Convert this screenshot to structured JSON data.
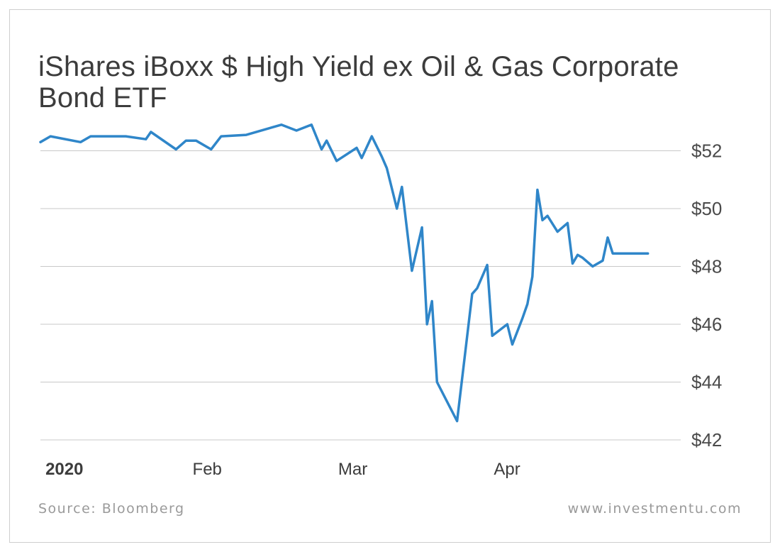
{
  "title": "iShares iBoxx $ High Yield ex Oil & Gas Corporate Bond ETF",
  "title_line1": "iShares iBoxx $ High Yield ex Oil & Gas Corporate",
  "title_line2": "Bond ETF",
  "source": "Source: Bloomberg",
  "site": "www.investmentu.com",
  "colors": {
    "line": "#2f86c9",
    "grid": "#c8c8c8",
    "text": "#3c3c3c"
  },
  "chart_data": {
    "type": "line",
    "title": "iShares iBoxx $ High Yield ex Oil & Gas Corporate Bond ETF",
    "xlabel": "",
    "ylabel": "",
    "ylim": [
      42,
      53
    ],
    "grid": "horizontal",
    "y_ticks": [
      {
        "value": 52,
        "label": "$52"
      },
      {
        "value": 50,
        "label": "$50"
      },
      {
        "value": 48,
        "label": "$48"
      },
      {
        "value": 46,
        "label": "$46"
      },
      {
        "value": 44,
        "label": "$44"
      },
      {
        "value": 42,
        "label": "$42"
      }
    ],
    "x_ticks": [
      {
        "date": "2020-01-01",
        "label": "2020",
        "bold": true
      },
      {
        "date": "2020-02-01",
        "label": "Feb",
        "bold": false
      },
      {
        "date": "2020-03-01",
        "label": "Mar",
        "bold": false
      },
      {
        "date": "2020-04-01",
        "label": "Apr",
        "bold": false
      }
    ],
    "series": [
      {
        "x": [
          "2019-12-31",
          "2020-01-02",
          "2020-01-08",
          "2020-01-10",
          "2020-01-15",
          "2020-01-17",
          "2020-01-21",
          "2020-01-22",
          "2020-01-27",
          "2020-01-29",
          "2020-01-31",
          "2020-02-03",
          "2020-02-05",
          "2020-02-10",
          "2020-02-17",
          "2020-02-20",
          "2020-02-23",
          "2020-02-25",
          "2020-02-26",
          "2020-02-28",
          "2020-03-03",
          "2020-03-04",
          "2020-03-06",
          "2020-03-08",
          "2020-03-09",
          "2020-03-11",
          "2020-03-12",
          "2020-03-14",
          "2020-03-16",
          "2020-03-17",
          "2020-03-18",
          "2020-03-19",
          "2020-03-23",
          "2020-03-26",
          "2020-03-27",
          "2020-03-29",
          "2020-03-30",
          "2020-04-02",
          "2020-04-03",
          "2020-04-05",
          "2020-04-06",
          "2020-04-07",
          "2020-04-08",
          "2020-04-09",
          "2020-04-10",
          "2020-04-12",
          "2020-04-14",
          "2020-04-15",
          "2020-04-16",
          "2020-04-17",
          "2020-04-19",
          "2020-04-21",
          "2020-04-22",
          "2020-04-23",
          "2020-04-24",
          "2020-04-26",
          "2020-04-27",
          "2020-04-29",
          "2020-04-30"
        ],
        "values": [
          52.3,
          52.5,
          52.3,
          52.5,
          52.5,
          52.5,
          52.4,
          52.65,
          52.05,
          52.35,
          52.35,
          52.05,
          52.5,
          52.55,
          52.9,
          52.7,
          52.9,
          52.05,
          52.35,
          51.65,
          52.1,
          51.75,
          52.5,
          51.8,
          51.4,
          50.0,
          50.75,
          47.85,
          49.35,
          46.0,
          46.8,
          44.0,
          42.65,
          47.05,
          47.25,
          48.05,
          45.6,
          46.0,
          45.3,
          46.2,
          46.7,
          47.65,
          50.65,
          49.6,
          49.75,
          49.2,
          49.5,
          48.1,
          48.4,
          48.3,
          48.0,
          48.2,
          49.0,
          48.45,
          48.45,
          48.45,
          48.45,
          48.45,
          48.45
        ]
      }
    ]
  }
}
